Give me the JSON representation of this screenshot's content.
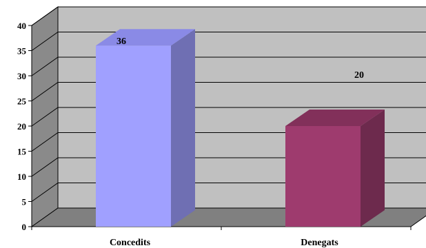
{
  "chart_data": {
    "type": "bar",
    "title": "",
    "xlabel": "",
    "ylabel": "",
    "categories": [
      "Concedits",
      "Denegats"
    ],
    "values": [
      36,
      20
    ],
    "data_labels": [
      "36",
      "20"
    ],
    "ylim": [
      0,
      40
    ],
    "yticks": [
      0,
      5,
      10,
      15,
      20,
      25,
      30,
      35,
      40
    ],
    "grid": true,
    "three_d": true,
    "colors": {
      "bars": [
        "#a0a0ff",
        "#9e3b6e"
      ],
      "bar_sides": [
        "#6f6fb3",
        "#6d2a4d"
      ],
      "bar_tops": [
        "#8a8ae6",
        "#82305a"
      ],
      "wall": "#c0c0c0",
      "floor": "#808080",
      "side_wall": "#8a8a8a"
    }
  }
}
